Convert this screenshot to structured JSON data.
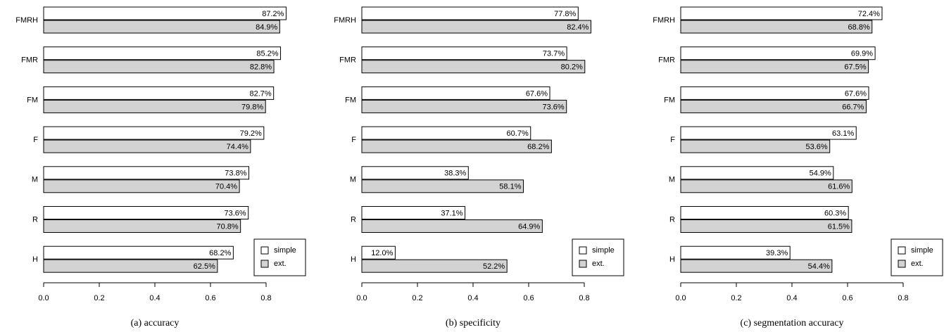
{
  "chart_data": [
    {
      "type": "bar",
      "orientation": "horizontal",
      "title": "(a) accuracy",
      "categories": [
        "FMRH",
        "FMR",
        "FM",
        "F",
        "M",
        "R",
        "H"
      ],
      "series": [
        {
          "name": "simple",
          "color": "#ffffff",
          "values": [
            0.872,
            0.852,
            0.827,
            0.792,
            0.738,
            0.736,
            0.682
          ],
          "value_labels": [
            "87.2%",
            "85.2%",
            "82.7%",
            "79.2%",
            "73.8%",
            "73.6%",
            "68.2%"
          ]
        },
        {
          "name": "ext.",
          "color": "#d3d3d3",
          "values": [
            0.849,
            0.828,
            0.798,
            0.744,
            0.704,
            0.708,
            0.625
          ],
          "value_labels": [
            "84.9%",
            "82.8%",
            "79.8%",
            "74.4%",
            "70.4%",
            "70.8%",
            "62.5%"
          ]
        }
      ],
      "xlim": [
        0,
        0.8
      ],
      "xticks": [
        {
          "value": 0,
          "label": "0.0"
        },
        0.2,
        0.4,
        0.6,
        0.8
      ],
      "legend": "bottom-right"
    },
    {
      "type": "bar",
      "orientation": "horizontal",
      "title": "(b) specificity",
      "categories": [
        "FMRH",
        "FMR",
        "FM",
        "F",
        "M",
        "R",
        "H"
      ],
      "series": [
        {
          "name": "simple",
          "color": "#ffffff",
          "values": [
            0.778,
            0.737,
            0.676,
            0.607,
            0.383,
            0.371,
            0.12
          ],
          "value_labels": [
            "77.8%",
            "73.7%",
            "67.6%",
            "60.7%",
            "38.3%",
            "37.1%",
            "12.0%"
          ]
        },
        {
          "name": "ext.",
          "color": "#d3d3d3",
          "values": [
            0.824,
            0.802,
            0.736,
            0.682,
            0.581,
            0.649,
            0.522
          ],
          "value_labels": [
            "82.4%",
            "80.2%",
            "73.6%",
            "68.2%",
            "58.1%",
            "64.9%",
            "52.2%"
          ]
        }
      ],
      "xlim": [
        0,
        0.8
      ],
      "xticks": [
        {
          "value": 0,
          "label": "0.0"
        },
        0.2,
        0.4,
        0.6,
        0.8
      ],
      "legend": "bottom-right"
    },
    {
      "type": "bar",
      "orientation": "horizontal",
      "title": "(c) segmentation accuracy",
      "categories": [
        "FMRH",
        "FMR",
        "FM",
        "F",
        "M",
        "R",
        "H"
      ],
      "series": [
        {
          "name": "simple",
          "color": "#ffffff",
          "values": [
            0.724,
            0.699,
            0.676,
            0.631,
            0.549,
            0.603,
            0.393
          ],
          "value_labels": [
            "72.4%",
            "69.9%",
            "67.6%",
            "63.1%",
            "54.9%",
            "60.3%",
            "39.3%"
          ]
        },
        {
          "name": "ext.",
          "color": "#d3d3d3",
          "values": [
            0.688,
            0.675,
            0.667,
            0.536,
            0.616,
            0.615,
            0.544
          ],
          "value_labels": [
            "68.8%",
            "67.5%",
            "66.7%",
            "53.6%",
            "61.6%",
            "61.5%",
            "54.4%"
          ]
        }
      ],
      "xlim": [
        0,
        0.8
      ],
      "xticks": [
        {
          "value": 0,
          "label": "0.0"
        },
        0.2,
        0.4,
        0.6,
        0.8
      ],
      "legend": "bottom-right"
    }
  ]
}
